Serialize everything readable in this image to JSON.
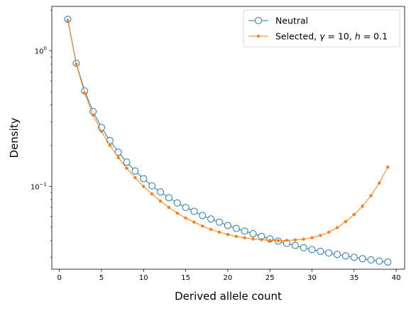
{
  "chart_data": {
    "type": "line",
    "xlabel": "Derived allele count",
    "ylabel": "Density",
    "xscale": "linear",
    "yscale": "log",
    "xlim": [
      -0.9,
      41.0
    ],
    "ylim": [
      0.0245,
      2.13
    ],
    "x_ticks": [
      0,
      5,
      10,
      15,
      20,
      25,
      30,
      35,
      40
    ],
    "y_ticks": [
      {
        "value": 1,
        "base": "10",
        "exp": "0"
      },
      {
        "value": 0.1,
        "base": "10",
        "exp": "−1"
      }
    ],
    "grid": false,
    "legend_position": "top-right",
    "x": [
      1,
      2,
      3,
      4,
      5,
      6,
      7,
      8,
      9,
      10,
      11,
      12,
      13,
      14,
      15,
      16,
      17,
      18,
      19,
      20,
      21,
      22,
      23,
      24,
      25,
      26,
      27,
      28,
      29,
      30,
      31,
      32,
      33,
      34,
      35,
      36,
      37,
      38,
      39
    ],
    "series": [
      {
        "name": "Neutral",
        "color": "#1f77b4",
        "marker": "open-circle",
        "values": [
          1.71,
          0.81,
          0.506,
          0.357,
          0.272,
          0.218,
          0.179,
          0.151,
          0.13,
          0.114,
          0.101,
          0.091,
          0.0825,
          0.0755,
          0.07,
          0.0655,
          0.061,
          0.0575,
          0.0545,
          0.0515,
          0.049,
          0.0468,
          0.0448,
          0.0428,
          0.041,
          0.0395,
          0.038,
          0.0367,
          0.0353,
          0.0342,
          0.0332,
          0.0323,
          0.0315,
          0.0307,
          0.03,
          0.0293,
          0.0287,
          0.0281,
          0.0277
        ]
      },
      {
        "name": "Selected, γ = 10, h = 0.1",
        "label_parts": {
          "prefix": "Selected, ",
          "gamma": "γ",
          "gamma_value": " = 10, ",
          "h": "h",
          "h_value": " = 0.1"
        },
        "color": "#ff7f0e",
        "marker": "dot",
        "values": [
          1.68,
          0.8,
          0.488,
          0.336,
          0.255,
          0.201,
          0.163,
          0.136,
          0.116,
          0.1,
          0.088,
          0.078,
          0.07,
          0.0635,
          0.0585,
          0.0545,
          0.051,
          0.0482,
          0.046,
          0.0442,
          0.0428,
          0.0418,
          0.041,
          0.0405,
          0.04,
          0.0398,
          0.04,
          0.0403,
          0.0408,
          0.0418,
          0.0435,
          0.046,
          0.0497,
          0.055,
          0.062,
          0.0715,
          0.0855,
          0.106,
          0.139
        ]
      }
    ]
  }
}
